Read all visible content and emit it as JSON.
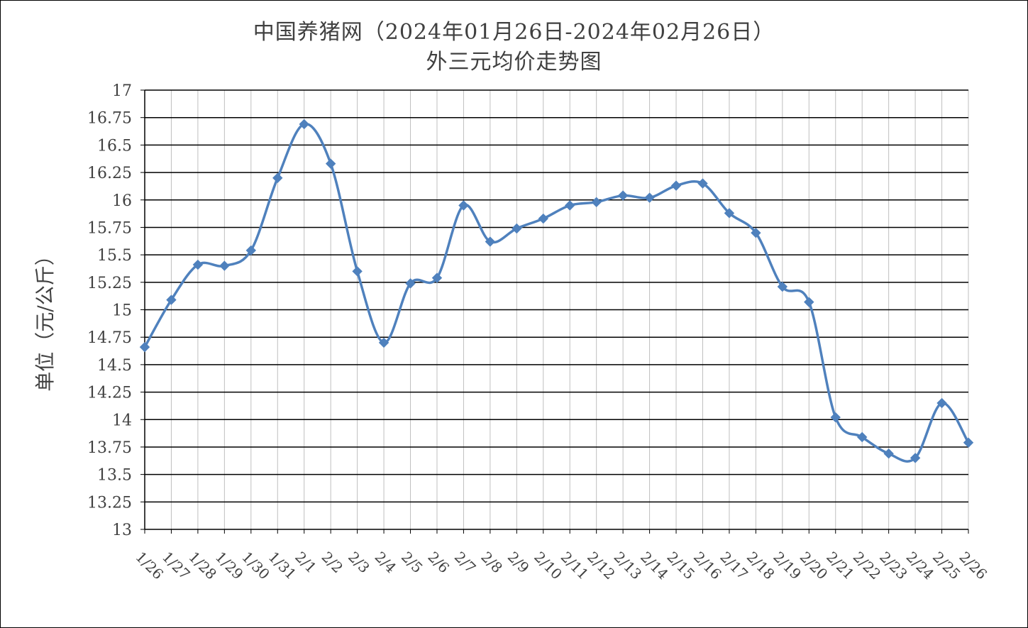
{
  "chart_data": {
    "type": "line",
    "title": "中国养猪网（2024年01月26日-2024年02月26日）",
    "subtitle": "外三元均价走势图",
    "xlabel": "",
    "ylabel": "单位（元/公斤）",
    "ylim": [
      13,
      17
    ],
    "ytick_labels": [
      "13",
      "13.25",
      "13.5",
      "13.75",
      "14",
      "14.25",
      "14.5",
      "14.75",
      "15",
      "15.25",
      "15.5",
      "15.75",
      "16",
      "16.25",
      "16.5",
      "16.75",
      "17"
    ],
    "grid": true,
    "legend": "none",
    "color": "#4F81BD",
    "categories": [
      "1/26",
      "1/27",
      "1/28",
      "1/29",
      "1/30",
      "1/31",
      "2/1",
      "2/2",
      "2/3",
      "2/4",
      "2/5",
      "2/6",
      "2/7",
      "2/8",
      "2/9",
      "2/10",
      "2/11",
      "2/12",
      "2/13",
      "2/14",
      "2/15",
      "2/16",
      "2/17",
      "2/18",
      "2/19",
      "2/20",
      "2/21",
      "2/22",
      "2/23",
      "2/24",
      "2/25",
      "2/26"
    ],
    "series": [
      {
        "values": [
          14.66,
          15.09,
          15.41,
          15.4,
          15.54,
          16.2,
          16.69,
          16.33,
          15.35,
          14.7,
          15.24,
          15.29,
          15.95,
          15.62,
          15.74,
          15.83,
          15.95,
          15.98,
          16.04,
          16.02,
          16.13,
          16.15,
          15.88,
          15.7,
          15.21,
          15.07,
          14.02,
          13.84,
          13.69,
          13.65,
          14.15,
          13.79
        ]
      }
    ]
  }
}
